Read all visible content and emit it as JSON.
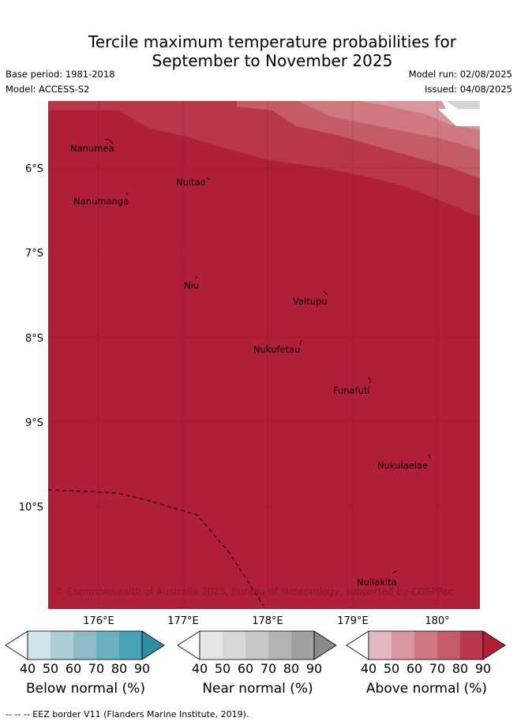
{
  "title": {
    "line1": "Tercile maximum temperature probabilities for",
    "line2": "September to November 2025"
  },
  "meta": {
    "base_period": "Base period: 1981-2018",
    "model": "Model: ACCESS-S2",
    "model_run": "Model run: 02/08/2025",
    "issued": "Issued: 04/08/2025"
  },
  "map": {
    "lat_labels": [
      "6°S",
      "7°S",
      "8°S",
      "9°S",
      "10°S"
    ],
    "lon_labels": [
      "176°E",
      "177°E",
      "178°E",
      "179°E",
      "180°"
    ],
    "places": [
      {
        "name": "Nanumea"
      },
      {
        "name": "Nuitao"
      },
      {
        "name": "Nanumanga"
      },
      {
        "name": "Niu"
      },
      {
        "name": "Vaitupu"
      },
      {
        "name": "Nukufetau"
      },
      {
        "name": "Funafuti"
      },
      {
        "name": "Nukulaelae"
      },
      {
        "name": "Nuilakita"
      }
    ],
    "copyright": "© Commonwealth of Australia 2025, Bureau of Meteorology, supported by COSPPac"
  },
  "legends": [
    {
      "caption": "Below normal (%)",
      "ticks": [
        "40",
        "50",
        "60",
        "70",
        "80",
        "90"
      ],
      "colors": [
        "#ffffff",
        "#cce4ea",
        "#abcdd3",
        "#8dbcc8",
        "#6bb0c0",
        "#47a3b5",
        "#2e8fa2"
      ]
    },
    {
      "caption": "Near normal (%)",
      "ticks": [
        "40",
        "50",
        "60",
        "70",
        "80",
        "90"
      ],
      "colors": [
        "#ffffff",
        "#e6e6e6",
        "#d7d7d7",
        "#c8c8c8",
        "#b4b4b4",
        "#a0a0a0",
        "#8a8a8a"
      ]
    },
    {
      "caption": "Above normal (%)",
      "ticks": [
        "40",
        "50",
        "60",
        "70",
        "80",
        "90"
      ],
      "colors": [
        "#ffffff",
        "#e3b9c0",
        "#d8969f",
        "#cf7880",
        "#c45c68",
        "#b8374a",
        "#b01e38"
      ]
    }
  ],
  "footer": "--  --  -- EEZ border V11 (Flanders Marine Institute, 2019)."
}
